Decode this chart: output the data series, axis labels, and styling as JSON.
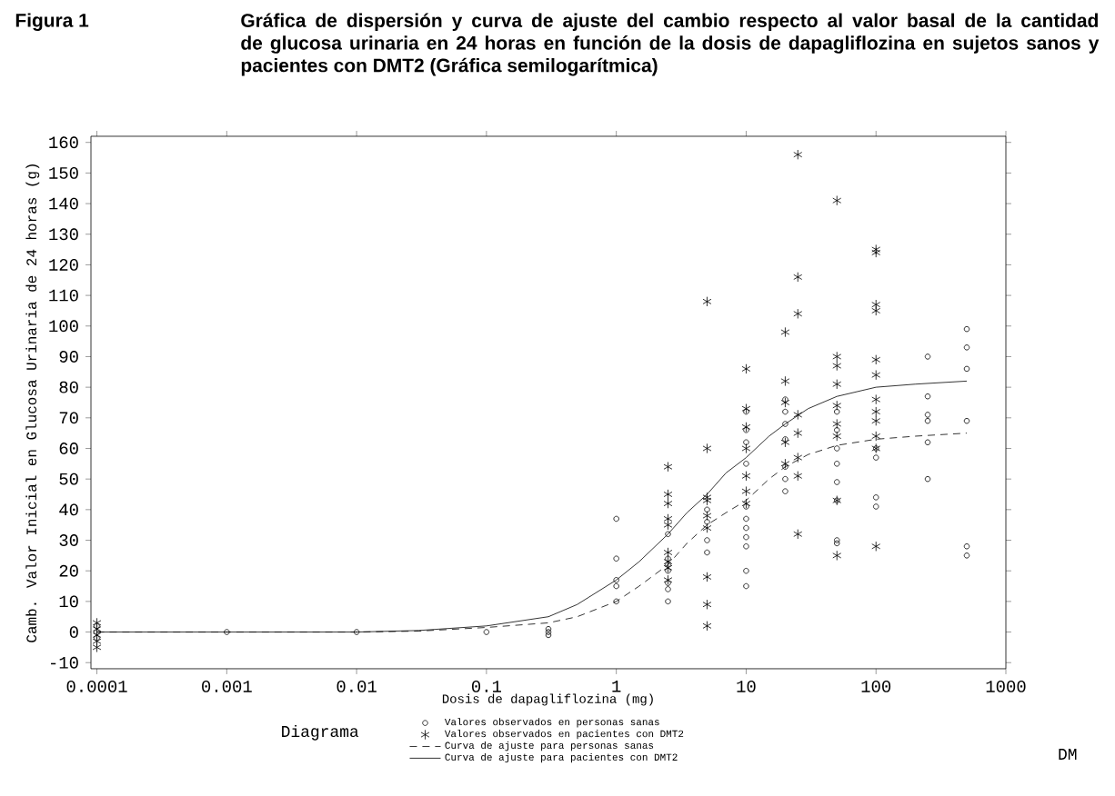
{
  "chart_data": {
    "type": "scatter",
    "title": "Figura 1",
    "subtitle": "Gráfica de dispersión y curva de ajuste del cambio respecto al valor basal de la cantidad de glucosa urinaria en 24 horas en función de la dosis de dapagliflozina en sujetos sanos y pacientes con DMT2 (Gráfica semilogarítmica)",
    "xlabel": "Dosis de dapagliflozina (mg)",
    "ylabel": "Camb. Valor Inicial en Glucosa Urinaria de 24 horas (g)",
    "legend_title": "Diagrama",
    "legend": "bottom",
    "log": "x",
    "xlim": [
      9e-05,
      1000
    ],
    "ylim": [
      -12,
      162
    ],
    "xticks": [
      {
        "value": 0.0001,
        "label": "0.0001"
      },
      {
        "value": 0.001,
        "label": "0.001"
      },
      {
        "value": 0.01,
        "label": "0.01"
      },
      {
        "value": 0.1,
        "label": "0.1"
      },
      1,
      10,
      100,
      1000
    ],
    "yticks": [
      -10,
      0,
      10,
      20,
      30,
      40,
      50,
      60,
      70,
      80,
      90,
      100,
      110,
      120,
      130,
      140,
      150,
      160
    ],
    "annotations": [
      "DM"
    ],
    "series": [
      {
        "name": "Valores observados en personas sanas",
        "type": "scatter",
        "marker": "circle",
        "color": "#000000",
        "x": [
          0.0001,
          0.0001,
          0.0001,
          0.001,
          0.01,
          0.1,
          0.3,
          0.3,
          0.3,
          1,
          1,
          1,
          1,
          1,
          2.5,
          2.5,
          2.5,
          2.5,
          2.5,
          2.5,
          2.5,
          5,
          5,
          5,
          5,
          10,
          10,
          10,
          10,
          10,
          10,
          10,
          10,
          10,
          10,
          10,
          20,
          20,
          20,
          20,
          20,
          20,
          20,
          50,
          50,
          50,
          50,
          50,
          50,
          50,
          50,
          100,
          100,
          100,
          100,
          250,
          250,
          250,
          250,
          250,
          250,
          500,
          500,
          500,
          500,
          500,
          500
        ],
        "values": [
          2,
          0,
          -2,
          0,
          0,
          0,
          0,
          1,
          -1,
          37,
          24,
          17,
          15,
          10,
          10,
          14,
          16,
          20,
          22,
          24,
          32,
          40,
          36,
          30,
          26,
          20,
          15,
          28,
          31,
          34,
          37,
          41,
          55,
          62,
          66,
          72,
          76,
          72,
          68,
          63,
          54,
          50,
          46,
          72,
          66,
          60,
          55,
          49,
          43,
          30,
          29,
          57,
          60,
          44,
          41,
          90,
          77,
          71,
          69,
          62,
          50,
          99,
          93,
          86,
          69,
          28,
          25
        ]
      },
      {
        "name": "Valores observados en pacientes con DMT2",
        "type": "scatter",
        "marker": "cross",
        "color": "#000000",
        "x": [
          0.0001,
          0.0001,
          0.0001,
          0.0001,
          0.0001,
          2.5,
          2.5,
          2.5,
          2.5,
          2.5,
          2.5,
          2.5,
          2.5,
          2.5,
          5,
          5,
          5,
          5,
          5,
          5,
          5,
          5,
          5,
          10,
          10,
          10,
          10,
          10,
          10,
          10,
          20,
          20,
          20,
          20,
          20,
          25,
          25,
          25,
          25,
          25,
          25,
          25,
          25,
          50,
          50,
          50,
          50,
          50,
          50,
          50,
          50,
          50,
          100,
          100,
          100,
          100,
          100,
          100,
          100,
          100,
          100,
          100,
          100,
          100
        ],
        "values": [
          3,
          1,
          -1,
          -3,
          -5,
          54,
          45,
          42,
          37,
          35,
          26,
          23,
          21,
          17,
          108,
          60,
          44,
          43,
          38,
          34,
          18,
          9,
          2,
          86,
          73,
          67,
          60,
          51,
          46,
          42,
          98,
          82,
          75,
          62,
          55,
          156,
          116,
          104,
          71,
          65,
          57,
          51,
          32,
          141,
          90,
          87,
          81,
          74,
          68,
          64,
          43,
          25,
          125,
          124,
          107,
          105,
          89,
          84,
          76,
          72,
          69,
          64,
          60,
          28
        ]
      },
      {
        "name": "Curva de ajuste para personas sanas",
        "type": "line",
        "marker": "none",
        "line_style": "dashed",
        "color": "#000000",
        "x": [
          0.0001,
          0.001,
          0.01,
          0.03,
          0.1,
          0.3,
          0.5,
          1,
          1.5,
          2.5,
          3.5,
          5,
          7,
          10,
          15,
          20,
          30,
          50,
          100,
          200,
          500
        ],
        "values": [
          0,
          0,
          0,
          0.3,
          1.5,
          3,
          5,
          10,
          15,
          22,
          29,
          35,
          39,
          43,
          50,
          54,
          58,
          61,
          63,
          64,
          65
        ]
      },
      {
        "name": "Curva de ajuste para pacientes con DMT2",
        "type": "line",
        "marker": "none",
        "line_style": "solid",
        "color": "#000000",
        "x": [
          0.0001,
          0.001,
          0.01,
          0.03,
          0.1,
          0.3,
          0.5,
          1,
          1.5,
          2.5,
          3.5,
          5,
          7,
          10,
          15,
          20,
          30,
          50,
          100,
          200,
          500
        ],
        "values": [
          0,
          0,
          0,
          0.5,
          2,
          5,
          9,
          17,
          23,
          32,
          39,
          45,
          52,
          57,
          64,
          68,
          73,
          77,
          80,
          81,
          82
        ]
      }
    ]
  }
}
